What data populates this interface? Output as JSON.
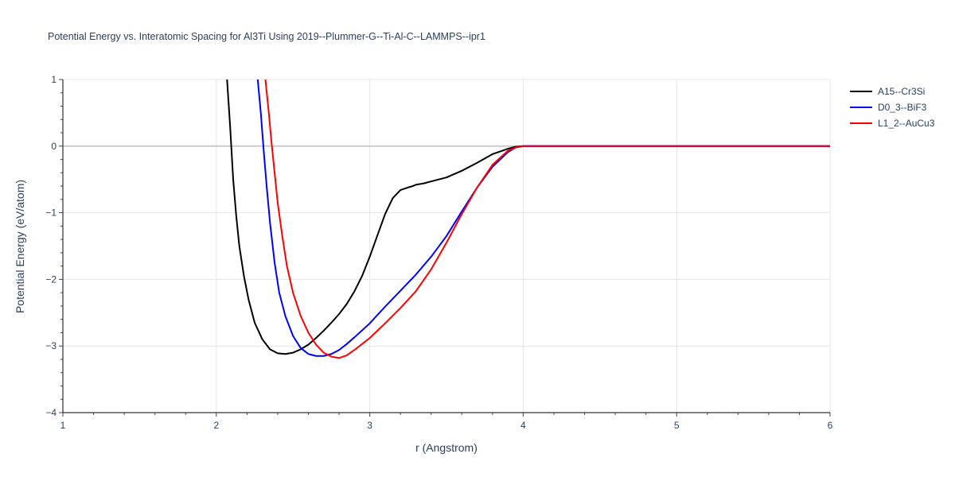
{
  "chart_data": {
    "type": "line",
    "title": "Potential Energy vs. Interatomic Spacing for Al3Ti Using 2019--Plummer-G--Ti-Al-C--LAMMPS--ipr1",
    "xlabel": "r (Angstrom)",
    "ylabel": "Potential Energy (eV/atom)",
    "xlim": [
      1,
      6
    ],
    "ylim": [
      -4,
      1
    ],
    "xticks": [
      1,
      2,
      3,
      4,
      5,
      6
    ],
    "xtick_labels": [
      "1",
      "2",
      "3",
      "4",
      "5",
      "6"
    ],
    "yticks": [
      -4,
      -3,
      -2,
      -1,
      0,
      1
    ],
    "ytick_labels": [
      "−4",
      "−3",
      "−2",
      "−1",
      "0",
      "1"
    ],
    "grid": true,
    "legend_position": "top-right",
    "series": [
      {
        "name": "A15--Cr3Si",
        "color": "#000000",
        "x": [
          2.07,
          2.09,
          2.11,
          2.13,
          2.15,
          2.18,
          2.21,
          2.25,
          2.3,
          2.35,
          2.4,
          2.45,
          2.5,
          2.55,
          2.6,
          2.65,
          2.7,
          2.75,
          2.8,
          2.85,
          2.9,
          2.95,
          3.0,
          3.05,
          3.1,
          3.15,
          3.2,
          3.25,
          3.28,
          3.3,
          3.35,
          3.4,
          3.45,
          3.5,
          3.6,
          3.7,
          3.8,
          3.9,
          3.95,
          4.0,
          4.05,
          4.1,
          4.5,
          5.0,
          5.5,
          6.0
        ],
        "y": [
          1.0,
          0.3,
          -0.5,
          -1.05,
          -1.5,
          -1.95,
          -2.3,
          -2.65,
          -2.9,
          -3.05,
          -3.11,
          -3.12,
          -3.1,
          -3.05,
          -2.98,
          -2.88,
          -2.77,
          -2.65,
          -2.52,
          -2.37,
          -2.18,
          -1.95,
          -1.66,
          -1.34,
          -1.02,
          -0.78,
          -0.66,
          -0.62,
          -0.6,
          -0.58,
          -0.56,
          -0.53,
          -0.5,
          -0.47,
          -0.37,
          -0.25,
          -0.12,
          -0.04,
          -0.01,
          0.0,
          0.0,
          0.0,
          0.0,
          0.0,
          0.0,
          0.0
        ]
      },
      {
        "name": "D0_3--BiF3",
        "color": "#0000ff",
        "x": [
          2.27,
          2.29,
          2.31,
          2.33,
          2.35,
          2.38,
          2.41,
          2.45,
          2.5,
          2.55,
          2.6,
          2.65,
          2.7,
          2.75,
          2.8,
          2.85,
          2.9,
          3.0,
          3.1,
          3.2,
          3.3,
          3.4,
          3.5,
          3.6,
          3.7,
          3.8,
          3.9,
          3.95,
          4.0,
          4.05,
          4.1,
          4.5,
          5.0,
          5.5,
          6.0
        ],
        "y": [
          1.0,
          0.5,
          -0.1,
          -0.65,
          -1.15,
          -1.75,
          -2.2,
          -2.55,
          -2.85,
          -3.03,
          -3.12,
          -3.15,
          -3.15,
          -3.12,
          -3.06,
          -2.97,
          -2.87,
          -2.66,
          -2.41,
          -2.17,
          -1.93,
          -1.66,
          -1.35,
          -0.98,
          -0.62,
          -0.31,
          -0.09,
          -0.02,
          0.0,
          0.0,
          0.0,
          0.0,
          0.0,
          0.0,
          0.0
        ]
      },
      {
        "name": "L1_2--AuCu3",
        "color": "#ff0000",
        "x": [
          2.32,
          2.34,
          2.36,
          2.38,
          2.4,
          2.43,
          2.46,
          2.5,
          2.55,
          2.6,
          2.65,
          2.7,
          2.75,
          2.8,
          2.85,
          2.9,
          2.95,
          3.0,
          3.1,
          3.2,
          3.3,
          3.4,
          3.5,
          3.6,
          3.7,
          3.8,
          3.9,
          3.95,
          4.0,
          4.05,
          4.1,
          4.5,
          5.0,
          5.5,
          6.0
        ],
        "y": [
          1.0,
          0.55,
          0.05,
          -0.4,
          -0.85,
          -1.35,
          -1.8,
          -2.2,
          -2.55,
          -2.8,
          -2.98,
          -3.1,
          -3.16,
          -3.18,
          -3.14,
          -3.06,
          -2.97,
          -2.88,
          -2.66,
          -2.43,
          -2.18,
          -1.85,
          -1.45,
          -1.02,
          -0.62,
          -0.28,
          -0.07,
          -0.02,
          0.0,
          0.0,
          0.0,
          0.0,
          0.0,
          0.0,
          0.0
        ]
      }
    ]
  }
}
